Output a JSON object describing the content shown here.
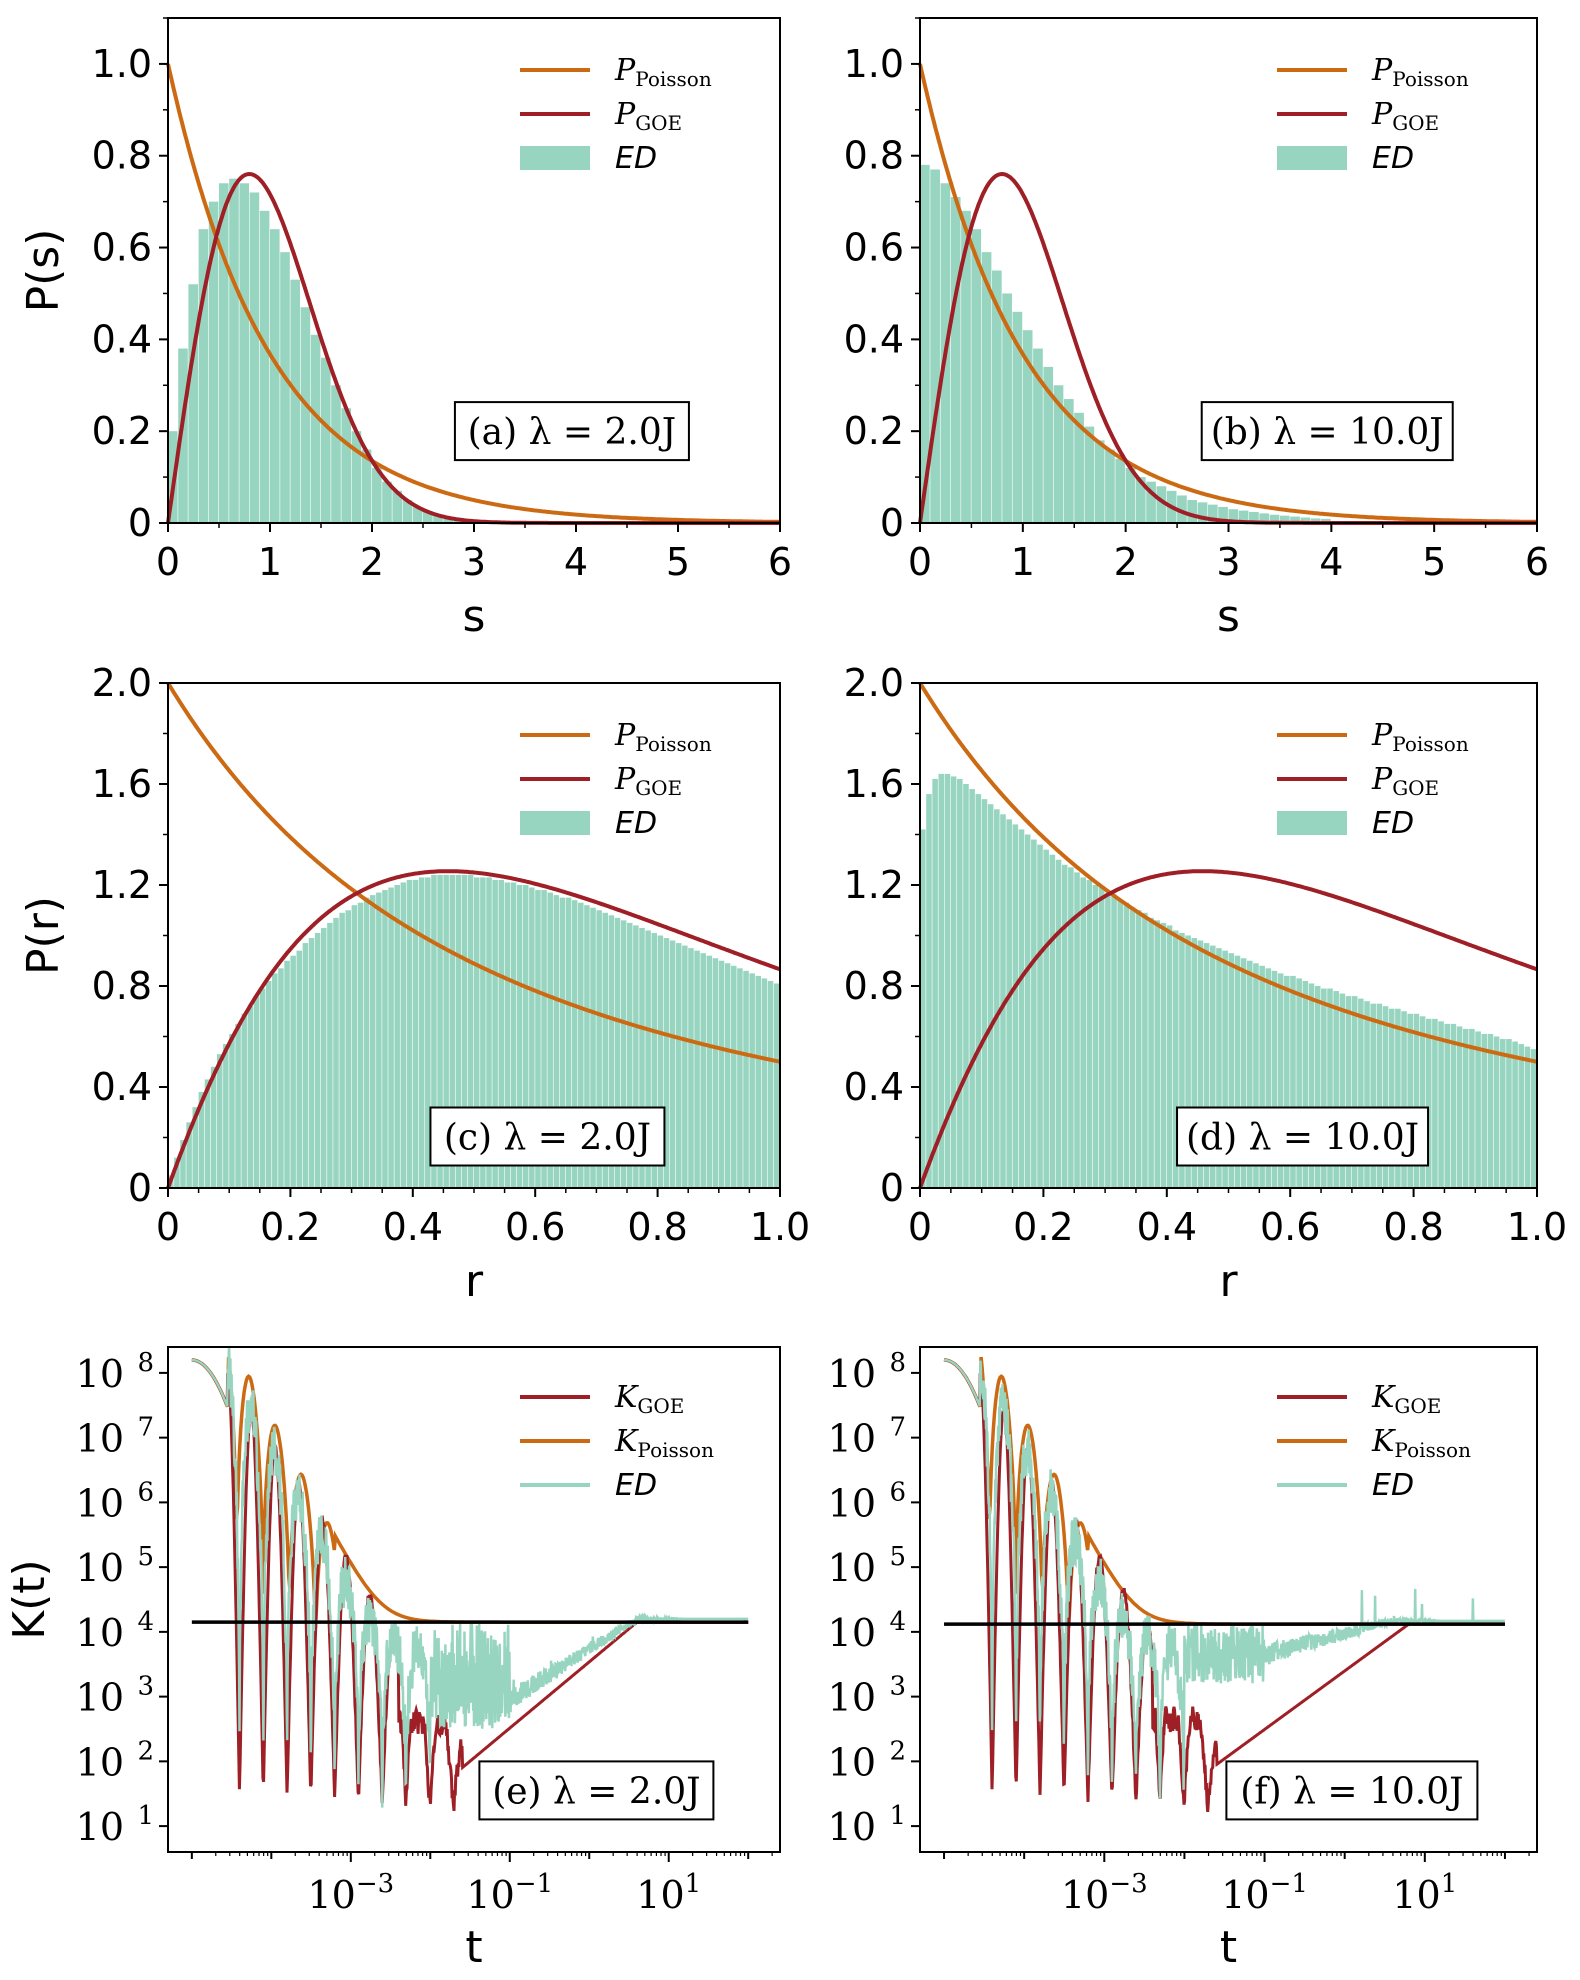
{
  "colors": {
    "poisson": "#cc6a14",
    "goe": "#9e1f25",
    "ed": "#98d5c0",
    "plateau": "#000000"
  },
  "chart_data": [
    {
      "id": "a",
      "type": "bar",
      "annotation": "(a) λ = 2.0J",
      "xlabel": "s",
      "ylabel": "P(s)",
      "xlim": [
        0,
        6
      ],
      "ylim": [
        0,
        1.1
      ],
      "xticks": [
        "0",
        "1",
        "2",
        "3",
        "4",
        "5",
        "6"
      ],
      "yticks": [
        "0",
        "0.2",
        "0.4",
        "0.6",
        "0.8",
        "1.0"
      ],
      "legend": [
        "P_Poisson",
        "P_GOE",
        "ED"
      ],
      "legend_position": "top-right",
      "bin_width": 0.1,
      "ed_values": [
        0.2,
        0.38,
        0.52,
        0.64,
        0.7,
        0.74,
        0.75,
        0.74,
        0.72,
        0.68,
        0.64,
        0.59,
        0.53,
        0.47,
        0.41,
        0.36,
        0.3,
        0.25,
        0.2,
        0.16,
        0.12,
        0.09,
        0.07,
        0.05,
        0.035,
        0.024,
        0.016,
        0.01,
        0.006,
        0.003
      ],
      "curves": [
        "poisson_s",
        "goe_s"
      ]
    },
    {
      "id": "b",
      "type": "bar",
      "annotation": "(b) λ = 10.0J",
      "xlabel": "s",
      "ylabel": "",
      "xlim": [
        0,
        6
      ],
      "ylim": [
        0,
        1.1
      ],
      "xticks": [
        "0",
        "1",
        "2",
        "3",
        "4",
        "5",
        "6"
      ],
      "yticks": [
        "0",
        "0.2",
        "0.4",
        "0.6",
        "0.8",
        "1.0"
      ],
      "legend": [
        "P_Poisson",
        "P_GOE",
        "ED"
      ],
      "legend_position": "top-right",
      "bin_width": 0.1,
      "ed_values": [
        0.78,
        0.77,
        0.74,
        0.71,
        0.68,
        0.64,
        0.59,
        0.55,
        0.5,
        0.46,
        0.42,
        0.38,
        0.34,
        0.3,
        0.27,
        0.24,
        0.21,
        0.18,
        0.16,
        0.14,
        0.12,
        0.1,
        0.09,
        0.08,
        0.07,
        0.06,
        0.05,
        0.045,
        0.04,
        0.035,
        0.03,
        0.027,
        0.024,
        0.021,
        0.018,
        0.016,
        0.014,
        0.012,
        0.01,
        0.009
      ],
      "curves": [
        "poisson_s",
        "goe_s"
      ]
    },
    {
      "id": "c",
      "type": "bar",
      "annotation": "(c) λ = 2.0J",
      "xlabel": "r",
      "ylabel": "P(r)",
      "xlim": [
        0,
        1
      ],
      "ylim": [
        0,
        2.0
      ],
      "xticks": [
        "0",
        "0.2",
        "0.4",
        "0.6",
        "0.8",
        "1.0"
      ],
      "yticks": [
        "0",
        "0.4",
        "0.8",
        "1.2",
        "1.6",
        "2.0"
      ],
      "legend": [
        "P_Poisson",
        "P_GOE",
        "ED"
      ],
      "legend_position": "top-right",
      "bin_width": 0.01,
      "ed_values": [
        0.05,
        0.12,
        0.19,
        0.26,
        0.32,
        0.38,
        0.43,
        0.48,
        0.53,
        0.57,
        0.61,
        0.65,
        0.69,
        0.72,
        0.76,
        0.79,
        0.82,
        0.85,
        0.87,
        0.9,
        0.92,
        0.94,
        0.97,
        0.99,
        1.01,
        1.03,
        1.05,
        1.07,
        1.09,
        1.1,
        1.12,
        1.13,
        1.15,
        1.16,
        1.17,
        1.18,
        1.19,
        1.2,
        1.21,
        1.22,
        1.22,
        1.23,
        1.23,
        1.24,
        1.24,
        1.24,
        1.24,
        1.24,
        1.24,
        1.24,
        1.23,
        1.23,
        1.23,
        1.22,
        1.22,
        1.21,
        1.21,
        1.2,
        1.2,
        1.19,
        1.18,
        1.18,
        1.17,
        1.16,
        1.15,
        1.15,
        1.14,
        1.13,
        1.12,
        1.11,
        1.1,
        1.09,
        1.08,
        1.07,
        1.06,
        1.05,
        1.04,
        1.03,
        1.02,
        1.01,
        1.0,
        0.99,
        0.98,
        0.97,
        0.96,
        0.95,
        0.94,
        0.93,
        0.92,
        0.91,
        0.9,
        0.89,
        0.88,
        0.87,
        0.86,
        0.85,
        0.84,
        0.83,
        0.82,
        0.81
      ],
      "curves": [
        "poisson_r",
        "goe_r"
      ]
    },
    {
      "id": "d",
      "type": "bar",
      "annotation": "(d) λ = 10.0J",
      "xlabel": "r",
      "ylabel": "",
      "xlim": [
        0,
        1
      ],
      "ylim": [
        0,
        2.0
      ],
      "xticks": [
        "0",
        "0.2",
        "0.4",
        "0.6",
        "0.8",
        "1.0"
      ],
      "yticks": [
        "0",
        "0.4",
        "0.8",
        "1.2",
        "1.6",
        "2.0"
      ],
      "legend": [
        "P_Poisson",
        "P_GOE",
        "ED"
      ],
      "legend_position": "top-right",
      "bin_width": 0.01,
      "ed_values": [
        1.42,
        1.56,
        1.62,
        1.64,
        1.64,
        1.63,
        1.62,
        1.6,
        1.58,
        1.56,
        1.54,
        1.52,
        1.5,
        1.48,
        1.46,
        1.44,
        1.42,
        1.4,
        1.38,
        1.36,
        1.34,
        1.32,
        1.3,
        1.28,
        1.27,
        1.25,
        1.23,
        1.22,
        1.2,
        1.19,
        1.17,
        1.16,
        1.14,
        1.13,
        1.11,
        1.1,
        1.09,
        1.07,
        1.06,
        1.05,
        1.04,
        1.02,
        1.01,
        1.0,
        0.99,
        0.98,
        0.97,
        0.96,
        0.95,
        0.94,
        0.93,
        0.92,
        0.91,
        0.9,
        0.89,
        0.88,
        0.87,
        0.86,
        0.85,
        0.84,
        0.84,
        0.83,
        0.82,
        0.81,
        0.8,
        0.79,
        0.79,
        0.78,
        0.77,
        0.76,
        0.76,
        0.75,
        0.74,
        0.73,
        0.73,
        0.72,
        0.71,
        0.71,
        0.7,
        0.69,
        0.69,
        0.68,
        0.67,
        0.67,
        0.66,
        0.65,
        0.65,
        0.64,
        0.63,
        0.63,
        0.62,
        0.61,
        0.61,
        0.6,
        0.59,
        0.59,
        0.58,
        0.57,
        0.56,
        0.55
      ],
      "curves": [
        "poisson_r",
        "goe_r"
      ]
    },
    {
      "id": "e",
      "type": "line",
      "annotation": "(e) λ = 2.0J",
      "xlabel": "t",
      "ylabel": "K(t)",
      "x_scale": "log",
      "y_scale": "log",
      "xlim_log10": [
        -5.3,
        2.4
      ],
      "ylim_log10": [
        0.6,
        8.4
      ],
      "xticks": [
        {
          "base": "10",
          "exp": "−3",
          "log": -3
        },
        {
          "base": "10",
          "exp": "−1",
          "log": -1
        },
        {
          "base": "10",
          "exp": "1",
          "log": 1
        }
      ],
      "yticks": [
        {
          "base": "10",
          "exp": "1",
          "log": 1
        },
        {
          "base": "10",
          "exp": "2",
          "log": 2
        },
        {
          "base": "10",
          "exp": "3",
          "log": 3
        },
        {
          "base": "10",
          "exp": "4",
          "log": 4
        },
        {
          "base": "10",
          "exp": "5",
          "log": 5
        },
        {
          "base": "10",
          "exp": "6",
          "log": 6
        },
        {
          "base": "10",
          "exp": "7",
          "log": 7
        },
        {
          "base": "10",
          "exp": "8",
          "log": 8
        }
      ],
      "legend": [
        "K_GOE",
        "K_Poisson",
        "ED"
      ],
      "legend_position": "top-right",
      "plateau_log10": 4.15,
      "goe_min_log10": 1.9,
      "goe_min_at_log10t": -1.6,
      "goe_plateau_at_log10t": 0.6,
      "ed_ceiling_log10": 2.9,
      "ed_ceiling_at_log10t": -1.0,
      "ed_spike_log10": 4.15,
      "t_range_log10": [
        -5.0,
        2.0
      ]
    },
    {
      "id": "f",
      "type": "line",
      "annotation": "(f) λ = 10.0J",
      "xlabel": "t",
      "ylabel": "",
      "x_scale": "log",
      "y_scale": "log",
      "xlim_log10": [
        -5.3,
        2.4
      ],
      "ylim_log10": [
        0.6,
        8.4
      ],
      "xticks": [
        {
          "base": "10",
          "exp": "−3",
          "log": -3
        },
        {
          "base": "10",
          "exp": "−1",
          "log": -1
        },
        {
          "base": "10",
          "exp": "1",
          "log": 1
        }
      ],
      "yticks": [
        {
          "base": "10",
          "exp": "1",
          "log": 1
        },
        {
          "base": "10",
          "exp": "2",
          "log": 2
        },
        {
          "base": "10",
          "exp": "3",
          "log": 3
        },
        {
          "base": "10",
          "exp": "4",
          "log": 4
        },
        {
          "base": "10",
          "exp": "5",
          "log": 5
        },
        {
          "base": "10",
          "exp": "6",
          "log": 6
        },
        {
          "base": "10",
          "exp": "7",
          "log": 7
        },
        {
          "base": "10",
          "exp": "8",
          "log": 8
        }
      ],
      "legend": [
        "K_GOE",
        "K_Poisson",
        "ED"
      ],
      "legend_position": "top-right",
      "plateau_log10": 4.12,
      "goe_min_log10": 1.95,
      "goe_min_at_log10t": -1.6,
      "goe_plateau_at_log10t": 0.8,
      "ed_ceiling_log10": 3.6,
      "ed_ceiling_at_log10t": -1.0,
      "ed_spike_log10": 4.7,
      "t_range_log10": [
        -5.0,
        2.0
      ]
    }
  ],
  "legend_labels": {
    "P_Poisson": {
      "main": "P",
      "sub": "Poisson"
    },
    "P_GOE": {
      "main": "P",
      "sub": "GOE"
    },
    "K_GOE": {
      "main": "K",
      "sub": "GOE"
    },
    "K_Poisson": {
      "main": "K",
      "sub": "Poisson"
    },
    "ED": {
      "main": "ED",
      "sub": ""
    }
  }
}
